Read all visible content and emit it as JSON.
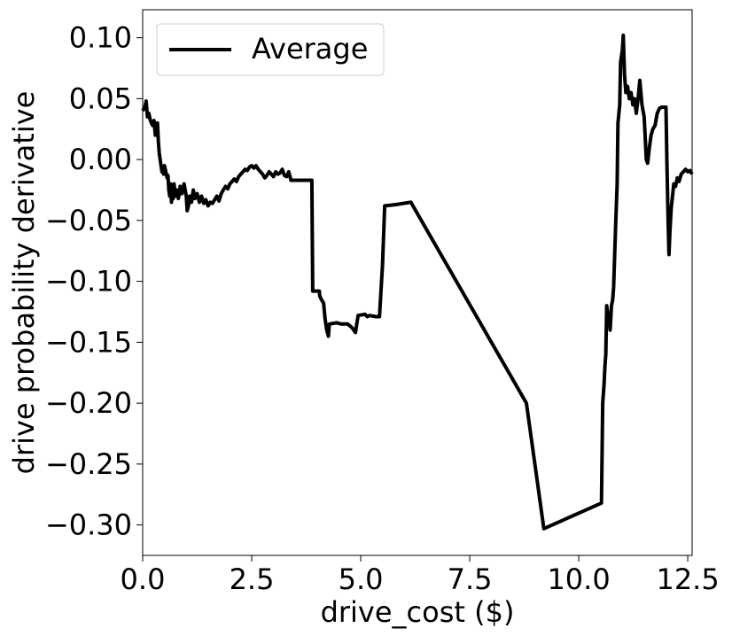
{
  "chart_data": {
    "type": "line",
    "title": "",
    "xlabel": "drive_cost ($)",
    "ylabel": "drive probability derivative",
    "xlim": [
      0.0,
      12.6
    ],
    "ylim": [
      -0.325,
      0.123
    ],
    "xticks": [
      {
        "value": 0.0,
        "label": "0.0"
      },
      {
        "value": 2.5,
        "label": "2.5"
      },
      {
        "value": 5.0,
        "label": "5.0"
      },
      {
        "value": 7.5,
        "label": "7.5"
      },
      {
        "value": 10.0,
        "label": "10.0"
      },
      {
        "value": 12.5,
        "label": "12.5"
      }
    ],
    "yticks": [
      {
        "value": 0.1,
        "label": "0.10"
      },
      {
        "value": 0.05,
        "label": "0.05"
      },
      {
        "value": 0.0,
        "label": "0.00"
      },
      {
        "value": -0.05,
        "label": "−0.05"
      },
      {
        "value": -0.1,
        "label": "−0.10"
      },
      {
        "value": -0.15,
        "label": "−0.15"
      },
      {
        "value": -0.2,
        "label": "−0.20"
      },
      {
        "value": -0.25,
        "label": "−0.25"
      },
      {
        "value": -0.3,
        "label": "−0.30"
      }
    ],
    "grid": false,
    "legend": "upper-left",
    "series": [
      {
        "name": "Average",
        "color": "#000000",
        "points": [
          [
            0.0,
            0.04
          ],
          [
            0.05,
            0.043
          ],
          [
            0.08,
            0.048
          ],
          [
            0.11,
            0.035
          ],
          [
            0.14,
            0.038
          ],
          [
            0.17,
            0.033
          ],
          [
            0.2,
            0.03
          ],
          [
            0.23,
            0.028
          ],
          [
            0.26,
            0.032
          ],
          [
            0.29,
            0.02
          ],
          [
            0.32,
            0.025
          ],
          [
            0.34,
            0.03
          ],
          [
            0.36,
            0.015
          ],
          [
            0.38,
            0.005
          ],
          [
            0.4,
            0.0
          ],
          [
            0.42,
            -0.005
          ],
          [
            0.44,
            -0.01
          ],
          [
            0.46,
            -0.008
          ],
          [
            0.48,
            -0.012
          ],
          [
            0.5,
            -0.005
          ],
          [
            0.53,
            -0.01
          ],
          [
            0.56,
            -0.015
          ],
          [
            0.58,
            -0.013
          ],
          [
            0.6,
            -0.025
          ],
          [
            0.62,
            -0.03
          ],
          [
            0.64,
            -0.02
          ],
          [
            0.66,
            -0.035
          ],
          [
            0.68,
            -0.025
          ],
          [
            0.7,
            -0.032
          ],
          [
            0.72,
            -0.02
          ],
          [
            0.75,
            -0.03
          ],
          [
            0.78,
            -0.025
          ],
          [
            0.82,
            -0.032
          ],
          [
            0.86,
            -0.022
          ],
          [
            0.9,
            -0.028
          ],
          [
            0.95,
            -0.02
          ],
          [
            1.0,
            -0.03
          ],
          [
            1.02,
            -0.042
          ],
          [
            1.05,
            -0.038
          ],
          [
            1.08,
            -0.03
          ],
          [
            1.12,
            -0.035
          ],
          [
            1.16,
            -0.025
          ],
          [
            1.2,
            -0.032
          ],
          [
            1.25,
            -0.028
          ],
          [
            1.3,
            -0.035
          ],
          [
            1.35,
            -0.03
          ],
          [
            1.4,
            -0.036
          ],
          [
            1.45,
            -0.033
          ],
          [
            1.5,
            -0.038
          ],
          [
            1.55,
            -0.035
          ],
          [
            1.6,
            -0.036
          ],
          [
            1.65,
            -0.033
          ],
          [
            1.7,
            -0.03
          ],
          [
            1.75,
            -0.034
          ],
          [
            1.8,
            -0.028
          ],
          [
            1.85,
            -0.025
          ],
          [
            1.9,
            -0.022
          ],
          [
            1.95,
            -0.024
          ],
          [
            2.0,
            -0.02
          ],
          [
            2.05,
            -0.018
          ],
          [
            2.1,
            -0.016
          ],
          [
            2.15,
            -0.018
          ],
          [
            2.2,
            -0.014
          ],
          [
            2.25,
            -0.012
          ],
          [
            2.3,
            -0.01
          ],
          [
            2.35,
            -0.008
          ],
          [
            2.4,
            -0.009
          ],
          [
            2.45,
            -0.006
          ],
          [
            2.5,
            -0.005
          ],
          [
            2.55,
            -0.007
          ],
          [
            2.6,
            -0.005
          ],
          [
            2.65,
            -0.008
          ],
          [
            2.7,
            -0.01
          ],
          [
            2.75,
            -0.012
          ],
          [
            2.8,
            -0.015
          ],
          [
            2.85,
            -0.013
          ],
          [
            2.9,
            -0.01
          ],
          [
            2.95,
            -0.012
          ],
          [
            3.0,
            -0.014
          ],
          [
            3.05,
            -0.01
          ],
          [
            3.1,
            -0.012
          ],
          [
            3.15,
            -0.011
          ],
          [
            3.2,
            -0.008
          ],
          [
            3.25,
            -0.013
          ],
          [
            3.3,
            -0.014
          ],
          [
            3.35,
            -0.01
          ],
          [
            3.4,
            -0.017
          ],
          [
            3.5,
            -0.017
          ],
          [
            3.7,
            -0.017
          ],
          [
            3.88,
            -0.017
          ],
          [
            3.9,
            -0.108
          ],
          [
            4.05,
            -0.108
          ],
          [
            4.06,
            -0.112
          ],
          [
            4.1,
            -0.115
          ],
          [
            4.15,
            -0.118
          ],
          [
            4.18,
            -0.13
          ],
          [
            4.22,
            -0.14
          ],
          [
            4.26,
            -0.145
          ],
          [
            4.28,
            -0.135
          ],
          [
            4.45,
            -0.134
          ],
          [
            4.55,
            -0.135
          ],
          [
            4.7,
            -0.135
          ],
          [
            4.8,
            -0.138
          ],
          [
            4.88,
            -0.142
          ],
          [
            4.94,
            -0.128
          ],
          [
            5.1,
            -0.127
          ],
          [
            5.15,
            -0.129
          ],
          [
            5.2,
            -0.128
          ],
          [
            5.35,
            -0.129
          ],
          [
            5.43,
            -0.129
          ],
          [
            5.5,
            -0.087
          ],
          [
            5.55,
            -0.038
          ],
          [
            5.8,
            -0.037
          ],
          [
            6.15,
            -0.035
          ],
          [
            8.8,
            -0.2
          ],
          [
            9.2,
            -0.303
          ],
          [
            10.52,
            -0.282
          ],
          [
            10.55,
            -0.2
          ],
          [
            10.58,
            -0.185
          ],
          [
            10.6,
            -0.17
          ],
          [
            10.62,
            -0.16
          ],
          [
            10.64,
            -0.12
          ],
          [
            10.66,
            -0.125
          ],
          [
            10.68,
            -0.135
          ],
          [
            10.7,
            -0.13
          ],
          [
            10.72,
            -0.14
          ],
          [
            10.75,
            -0.12
          ],
          [
            10.78,
            -0.115
          ],
          [
            10.8,
            -0.105
          ],
          [
            10.85,
            -0.05
          ],
          [
            10.88,
            -0.02
          ],
          [
            10.9,
            0.03
          ],
          [
            10.94,
            0.045
          ],
          [
            10.96,
            0.08
          ],
          [
            11.0,
            0.09
          ],
          [
            11.02,
            0.102
          ],
          [
            11.05,
            0.07
          ],
          [
            11.08,
            0.055
          ],
          [
            11.12,
            0.06
          ],
          [
            11.16,
            0.05
          ],
          [
            11.2,
            0.055
          ],
          [
            11.24,
            0.045
          ],
          [
            11.28,
            0.05
          ],
          [
            11.32,
            0.038
          ],
          [
            11.36,
            0.05
          ],
          [
            11.4,
            0.065
          ],
          [
            11.45,
            0.045
          ],
          [
            11.5,
            0.035
          ],
          [
            11.55,
            0.0
          ],
          [
            11.58,
            -0.003
          ],
          [
            11.62,
            0.01
          ],
          [
            11.66,
            0.02
          ],
          [
            11.7,
            0.025
          ],
          [
            11.75,
            0.028
          ],
          [
            11.8,
            0.038
          ],
          [
            11.85,
            0.042
          ],
          [
            11.9,
            0.043
          ],
          [
            11.95,
            0.043
          ],
          [
            12.0,
            0.043
          ],
          [
            12.02,
            0.0
          ],
          [
            12.05,
            -0.05
          ],
          [
            12.07,
            -0.078
          ],
          [
            12.09,
            -0.06
          ],
          [
            12.12,
            -0.04
          ],
          [
            12.15,
            -0.03
          ],
          [
            12.18,
            -0.02
          ],
          [
            12.22,
            -0.022
          ],
          [
            12.26,
            -0.015
          ],
          [
            12.3,
            -0.018
          ],
          [
            12.35,
            -0.012
          ],
          [
            12.4,
            -0.01
          ],
          [
            12.45,
            -0.008
          ],
          [
            12.5,
            -0.01
          ],
          [
            12.55,
            -0.009
          ],
          [
            12.6,
            -0.012
          ]
        ]
      }
    ]
  }
}
